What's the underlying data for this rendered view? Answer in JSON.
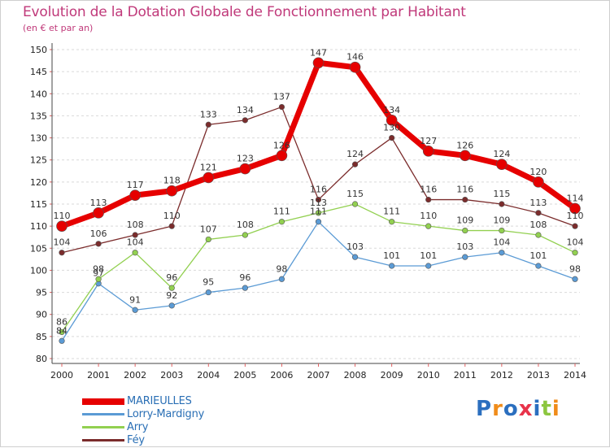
{
  "header": {
    "title": "Evolution de la Dotation Globale de Fonctionnement par Habitant",
    "subtitle": "(en € et par an)"
  },
  "chart_data": {
    "type": "line",
    "title": "Evolution de la Dotation Globale de Fonctionnement par Habitant",
    "subtitle": "(en € et par an)",
    "xlabel": "",
    "ylabel": "",
    "x": [
      2000,
      2001,
      2002,
      2003,
      2004,
      2005,
      2006,
      2007,
      2008,
      2009,
      2010,
      2011,
      2012,
      2013,
      2014
    ],
    "ylim": [
      80,
      150
    ],
    "yticks": [
      80,
      85,
      90,
      95,
      100,
      105,
      110,
      115,
      120,
      125,
      130,
      135,
      140,
      145,
      150
    ],
    "grid": "horizontal dashed",
    "legend_position": "bottom-left",
    "series": [
      {
        "name": "MARIEULLES",
        "color": "#e60000",
        "values": [
          110,
          113,
          117,
          118,
          121,
          123,
          126,
          147,
          146,
          134,
          127,
          126,
          124,
          120,
          114
        ]
      },
      {
        "name": "Lorry-Mardigny",
        "color": "#5b9bd5",
        "values": [
          84,
          97,
          91,
          92,
          95,
          96,
          98,
          111,
          103,
          101,
          101,
          103,
          104,
          101,
          98
        ]
      },
      {
        "name": "Arry",
        "color": "#92d050",
        "values": [
          86,
          98,
          104,
          96,
          107,
          108,
          111,
          113,
          115,
          111,
          110,
          109,
          109,
          108,
          104
        ]
      },
      {
        "name": "Féy",
        "color": "#7b2c2c",
        "values": [
          104,
          106,
          108,
          110,
          133,
          134,
          137,
          116,
          124,
          130,
          116,
          116,
          115,
          113,
          110
        ]
      }
    ]
  },
  "logo": {
    "text": "Proxiti",
    "letters": [
      "P",
      "r",
      "o",
      "x",
      "i",
      "t",
      "i"
    ],
    "colors": [
      "#2b6fbf",
      "#f08c1a",
      "#2b6fbf",
      "#e8334a",
      "#2b6fbf",
      "#8cc63f",
      "#f08c1a"
    ]
  }
}
